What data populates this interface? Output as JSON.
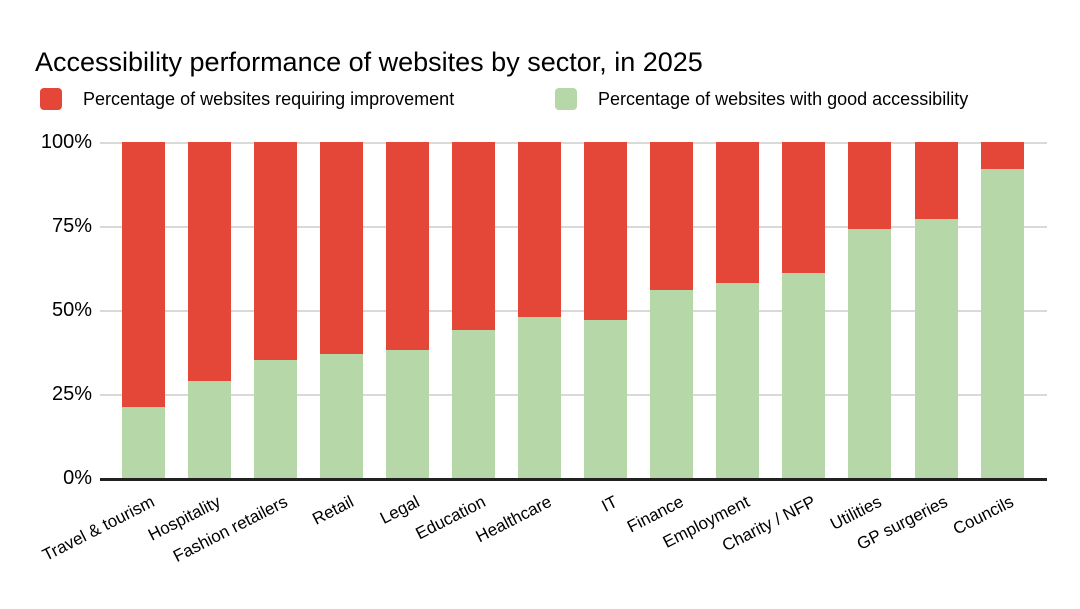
{
  "title": "Accessibility performance of websites by sector, in 2025",
  "legend": {
    "items": [
      {
        "label": "Percentage of websites requiring improvement",
        "color": "#e44638"
      },
      {
        "label": "Percentage of websites with good accessibility",
        "color": "#b6d7a7"
      }
    ]
  },
  "chart_data": {
    "type": "bar",
    "stacked": true,
    "title": "Accessibility performance of websites by sector, in 2025",
    "categories": [
      "Travel & tourism",
      "Hospitality",
      "Fashion retailers",
      "Retail",
      "Legal",
      "Education",
      "Healthcare",
      "IT",
      "Finance",
      "Employment",
      "Charity / NFP",
      "Utilities",
      "GP surgeries",
      "Councils"
    ],
    "series": [
      {
        "name": "Percentage of websites requiring improvement",
        "color": "#e44638",
        "values": [
          79,
          71,
          65,
          63,
          62,
          56,
          52,
          53,
          44,
          42,
          39,
          26,
          23,
          8
        ]
      },
      {
        "name": "Percentage of websites with good accessibility",
        "color": "#b6d7a7",
        "values": [
          21,
          29,
          35,
          37,
          38,
          44,
          48,
          47,
          56,
          58,
          61,
          74,
          77,
          92
        ]
      }
    ],
    "xlabel": "",
    "ylabel": "",
    "ylim": [
      0,
      100
    ],
    "yticks": [
      "100%",
      "75%",
      "50%",
      "25%",
      "0%"
    ],
    "grid": true,
    "gridline_color": "#d9d9d9",
    "axis_line_color": "#212121",
    "legend_position": "top"
  }
}
